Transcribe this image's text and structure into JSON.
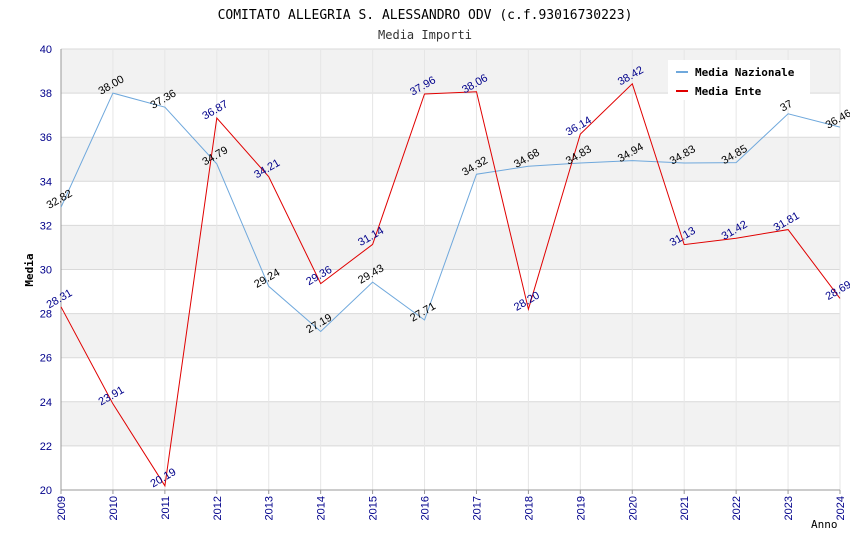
{
  "chart_data": {
    "type": "line",
    "title": "COMITATO ALLEGRIA S. ALESSANDRO ODV (c.f.93016730223)",
    "subtitle": "Media Importi",
    "xlabel": "Anno",
    "ylabel": "Media",
    "ylim": [
      20,
      40
    ],
    "yticks": [
      20,
      22,
      24,
      26,
      28,
      30,
      32,
      34,
      36,
      38,
      40
    ],
    "x": [
      "2009",
      "2010",
      "2011",
      "2012",
      "2013",
      "2014",
      "2015",
      "2016",
      "2017",
      "2018",
      "2019",
      "2020",
      "2021",
      "2022",
      "2023",
      "2024"
    ],
    "grid": true,
    "legend_position": "top-right",
    "series": [
      {
        "name": "Media Nazionale",
        "color": "#6fa8dc",
        "label_color": "#000000",
        "values": [
          32.82,
          38.0,
          37.36,
          34.79,
          29.24,
          27.19,
          29.43,
          27.71,
          34.32,
          34.68,
          34.83,
          34.94,
          34.83,
          34.85,
          37.06,
          36.46
        ],
        "labels": [
          "32.82",
          "38.00",
          "37.36",
          "34.79",
          "29.24",
          "27.19",
          "29.43",
          "27.71",
          "34.32",
          "34.68",
          "34.83",
          "34.94",
          "34.83",
          "34.85",
          "37",
          "36.46"
        ]
      },
      {
        "name": "Media Ente",
        "color": "#e00000",
        "label_color": "#00008b",
        "values": [
          28.31,
          23.91,
          20.19,
          36.87,
          34.21,
          29.36,
          31.14,
          37.96,
          38.06,
          28.2,
          36.14,
          38.42,
          31.13,
          31.42,
          31.81,
          28.69
        ],
        "labels": [
          "28.31",
          "23.91",
          "20.19",
          "36.87",
          "34.21",
          "29.36",
          "31.14",
          "37.96",
          "38.06",
          "28.20",
          "36.14",
          "38.42",
          "31.13",
          "31.42",
          "31.81",
          "28.69"
        ]
      }
    ]
  }
}
